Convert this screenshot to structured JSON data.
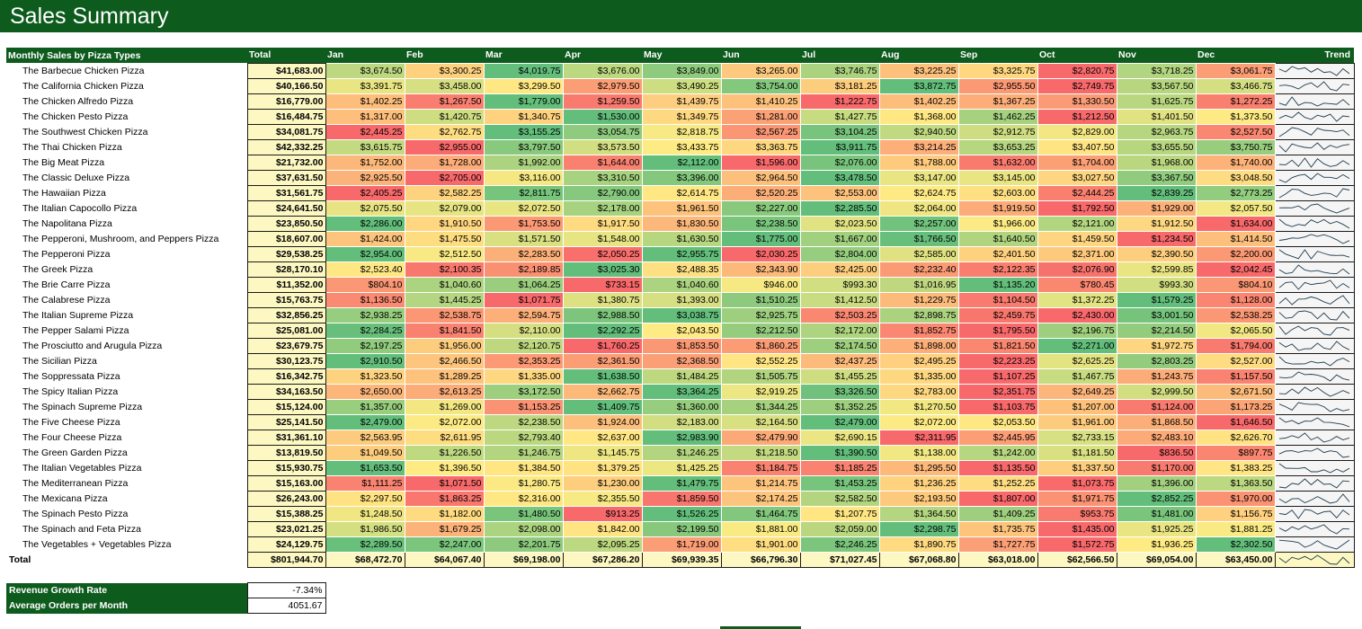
{
  "page": {
    "title": "Sales Summary"
  },
  "table": {
    "headers": [
      "Monthly Sales by Pizza Types",
      "Total",
      "Jan",
      "Feb",
      "Mar",
      "Apr",
      "May",
      "Jun",
      "Jul",
      "Aug",
      "Sep",
      "Oct",
      "Nov",
      "Dec",
      "Trend"
    ],
    "rows": [
      {
        "name": "The Barbecue Chicken Pizza",
        "total": "$41,683.00",
        "months": [
          "$3,674.50",
          "$3,300.25",
          "$4,019.75",
          "$3,676.00",
          "$3,849.00",
          "$3,265.00",
          "$3,746.75",
          "$3,225.25",
          "$3,325.75",
          "$2,820.75",
          "$3,718.25",
          "$3,061.75"
        ]
      },
      {
        "name": "The California Chicken Pizza",
        "total": "$40,166.50",
        "months": [
          "$3,391.75",
          "$3,458.00",
          "$3,299.50",
          "$2,979.50",
          "$3,490.25",
          "$3,754.00",
          "$3,181.25",
          "$3,872.75",
          "$2,955.50",
          "$2,749.75",
          "$3,567.50",
          "$3,466.75"
        ]
      },
      {
        "name": "The Chicken Alfredo Pizza",
        "total": "$16,779.00",
        "months": [
          "$1,402.25",
          "$1,267.50",
          "$1,779.00",
          "$1,259.50",
          "$1,439.75",
          "$1,410.25",
          "$1,222.75",
          "$1,402.25",
          "$1,367.25",
          "$1,330.50",
          "$1,625.75",
          "$1,272.25"
        ]
      },
      {
        "name": "The Chicken Pesto Pizza",
        "total": "$16,484.75",
        "months": [
          "$1,317.00",
          "$1,420.75",
          "$1,340.75",
          "$1,530.00",
          "$1,349.75",
          "$1,281.00",
          "$1,427.75",
          "$1,368.00",
          "$1,462.25",
          "$1,212.50",
          "$1,401.50",
          "$1,373.50"
        ]
      },
      {
        "name": "The Southwest Chicken Pizza",
        "total": "$34,081.75",
        "months": [
          "$2,445.25",
          "$2,762.75",
          "$3,155.25",
          "$3,054.75",
          "$2,818.75",
          "$2,567.25",
          "$3,104.25",
          "$2,940.50",
          "$2,912.75",
          "$2,829.00",
          "$2,963.75",
          "$2,527.50"
        ]
      },
      {
        "name": "The Thai Chicken Pizza",
        "total": "$42,332.25",
        "months": [
          "$3,615.75",
          "$2,955.00",
          "$3,797.50",
          "$3,573.50",
          "$3,433.75",
          "$3,363.75",
          "$3,911.75",
          "$3,214.25",
          "$3,653.25",
          "$3,407.50",
          "$3,655.50",
          "$3,750.75"
        ]
      },
      {
        "name": "The Big Meat Pizza",
        "total": "$21,732.00",
        "months": [
          "$1,752.00",
          "$1,728.00",
          "$1,992.00",
          "$1,644.00",
          "$2,112.00",
          "$1,596.00",
          "$2,076.00",
          "$1,788.00",
          "$1,632.00",
          "$1,704.00",
          "$1,968.00",
          "$1,740.00"
        ]
      },
      {
        "name": "The Classic Deluxe Pizza",
        "total": "$37,631.50",
        "months": [
          "$2,925.50",
          "$2,705.00",
          "$3,116.00",
          "$3,310.50",
          "$3,396.00",
          "$2,964.50",
          "$3,478.50",
          "$3,147.00",
          "$3,145.00",
          "$3,027.50",
          "$3,367.50",
          "$3,048.50"
        ]
      },
      {
        "name": "The Hawaiian Pizza",
        "total": "$31,561.75",
        "months": [
          "$2,405.25",
          "$2,582.25",
          "$2,811.75",
          "$2,790.00",
          "$2,614.75",
          "$2,520.25",
          "$2,553.00",
          "$2,624.75",
          "$2,603.00",
          "$2,444.25",
          "$2,839.25",
          "$2,773.25"
        ]
      },
      {
        "name": "The Italian Capocollo Pizza",
        "total": "$24,641.50",
        "months": [
          "$2,075.50",
          "$2,079.00",
          "$2,072.50",
          "$2,178.00",
          "$1,961.50",
          "$2,227.00",
          "$2,285.50",
          "$2,064.00",
          "$1,919.50",
          "$1,792.50",
          "$1,929.00",
          "$2,057.50"
        ]
      },
      {
        "name": "The Napolitana Pizza",
        "total": "$23,850.50",
        "months": [
          "$2,286.00",
          "$1,910.50",
          "$1,753.50",
          "$1,917.50",
          "$1,830.50",
          "$2,238.50",
          "$2,023.50",
          "$2,257.00",
          "$1,966.00",
          "$2,121.00",
          "$1,912.50",
          "$1,634.00"
        ]
      },
      {
        "name": "The Pepperoni, Mushroom, and Peppers Pizza",
        "total": "$18,607.00",
        "months": [
          "$1,424.00",
          "$1,475.50",
          "$1,571.50",
          "$1,548.00",
          "$1,630.50",
          "$1,775.00",
          "$1,667.00",
          "$1,766.50",
          "$1,640.50",
          "$1,459.50",
          "$1,234.50",
          "$1,414.50"
        ]
      },
      {
        "name": "The Pepperoni Pizza",
        "total": "$29,538.25",
        "months": [
          "$2,954.00",
          "$2,512.50",
          "$2,283.50",
          "$2,050.25",
          "$2,955.75",
          "$2,030.25",
          "$2,804.00",
          "$2,585.00",
          "$2,401.50",
          "$2,371.00",
          "$2,390.50",
          "$2,200.00"
        ]
      },
      {
        "name": "The Greek Pizza",
        "total": "$28,170.10",
        "months": [
          "$2,523.40",
          "$2,100.35",
          "$2,189.85",
          "$3,025.30",
          "$2,488.35",
          "$2,343.90",
          "$2,425.00",
          "$2,232.40",
          "$2,122.35",
          "$2,076.90",
          "$2,599.85",
          "$2,042.45"
        ]
      },
      {
        "name": "The Brie Carre Pizza",
        "total": "$11,352.00",
        "months": [
          "$804.10",
          "$1,040.60",
          "$1,064.25",
          "$733.15",
          "$1,040.60",
          "$946.00",
          "$993.30",
          "$1,016.95",
          "$1,135.20",
          "$780.45",
          "$993.30",
          "$804.10"
        ]
      },
      {
        "name": "The Calabrese Pizza",
        "total": "$15,763.75",
        "months": [
          "$1,136.50",
          "$1,445.25",
          "$1,071.75",
          "$1,380.75",
          "$1,393.00",
          "$1,510.25",
          "$1,412.50",
          "$1,229.75",
          "$1,104.50",
          "$1,372.25",
          "$1,579.25",
          "$1,128.00"
        ]
      },
      {
        "name": "The Italian Supreme Pizza",
        "total": "$32,856.25",
        "months": [
          "$2,938.25",
          "$2,538.75",
          "$2,594.75",
          "$2,988.50",
          "$3,038.75",
          "$2,925.75",
          "$2,503.25",
          "$2,898.75",
          "$2,459.75",
          "$2,430.00",
          "$3,001.50",
          "$2,538.25"
        ]
      },
      {
        "name": "The Pepper Salami Pizza",
        "total": "$25,081.00",
        "months": [
          "$2,284.25",
          "$1,841.50",
          "$2,110.00",
          "$2,292.25",
          "$2,043.50",
          "$2,212.50",
          "$2,172.00",
          "$1,852.75",
          "$1,795.50",
          "$2,196.75",
          "$2,214.50",
          "$2,065.50"
        ]
      },
      {
        "name": "The Prosciutto and Arugula Pizza",
        "total": "$23,679.75",
        "months": [
          "$2,197.25",
          "$1,956.00",
          "$2,120.75",
          "$1,760.25",
          "$1,853.50",
          "$1,860.25",
          "$2,174.50",
          "$1,898.00",
          "$1,821.50",
          "$2,271.00",
          "$1,972.75",
          "$1,794.00"
        ]
      },
      {
        "name": "The Sicilian Pizza",
        "total": "$30,123.75",
        "months": [
          "$2,910.50",
          "$2,466.50",
          "$2,353.25",
          "$2,361.50",
          "$2,368.50",
          "$2,552.25",
          "$2,437.25",
          "$2,495.25",
          "$2,223.25",
          "$2,625.25",
          "$2,803.25",
          "$2,527.00"
        ]
      },
      {
        "name": "The Soppressata Pizza",
        "total": "$16,342.75",
        "months": [
          "$1,323.50",
          "$1,289.25",
          "$1,335.00",
          "$1,638.50",
          "$1,484.25",
          "$1,505.75",
          "$1,455.25",
          "$1,335.00",
          "$1,107.25",
          "$1,467.75",
          "$1,243.75",
          "$1,157.50"
        ]
      },
      {
        "name": "The Spicy Italian Pizza",
        "total": "$34,163.50",
        "months": [
          "$2,650.00",
          "$2,613.25",
          "$3,172.50",
          "$2,662.75",
          "$3,364.25",
          "$2,919.25",
          "$3,326.50",
          "$2,783.00",
          "$2,351.75",
          "$2,649.25",
          "$2,999.50",
          "$2,671.50"
        ]
      },
      {
        "name": "The Spinach Supreme Pizza",
        "total": "$15,124.00",
        "months": [
          "$1,357.00",
          "$1,269.00",
          "$1,153.25",
          "$1,409.75",
          "$1,360.00",
          "$1,344.25",
          "$1,352.25",
          "$1,270.50",
          "$1,103.75",
          "$1,207.00",
          "$1,124.00",
          "$1,173.25"
        ]
      },
      {
        "name": "The Five Cheese Pizza",
        "total": "$25,141.50",
        "months": [
          "$2,479.00",
          "$2,072.00",
          "$2,238.50",
          "$1,924.00",
          "$2,183.00",
          "$2,164.50",
          "$2,479.00",
          "$2,072.00",
          "$2,053.50",
          "$1,961.00",
          "$1,868.50",
          "$1,646.50"
        ]
      },
      {
        "name": "The Four Cheese Pizza",
        "total": "$31,361.10",
        "months": [
          "$2,563.95",
          "$2,611.95",
          "$2,793.40",
          "$2,637.00",
          "$2,983.90",
          "$2,479.90",
          "$2,690.15",
          "$2,311.95",
          "$2,445.95",
          "$2,733.15",
          "$2,483.10",
          "$2,626.70"
        ]
      },
      {
        "name": "The Green Garden Pizza",
        "total": "$13,819.50",
        "months": [
          "$1,049.50",
          "$1,226.50",
          "$1,246.75",
          "$1,145.75",
          "$1,246.25",
          "$1,218.50",
          "$1,390.50",
          "$1,138.00",
          "$1,242.00",
          "$1,181.50",
          "$836.50",
          "$897.75"
        ]
      },
      {
        "name": "The Italian Vegetables Pizza",
        "total": "$15,930.75",
        "months": [
          "$1,653.50",
          "$1,396.50",
          "$1,384.50",
          "$1,379.25",
          "$1,425.25",
          "$1,184.75",
          "$1,185.25",
          "$1,295.50",
          "$1,135.50",
          "$1,337.50",
          "$1,170.00",
          "$1,383.25"
        ]
      },
      {
        "name": "The Mediterranean Pizza",
        "total": "$15,163.00",
        "months": [
          "$1,111.25",
          "$1,071.50",
          "$1,280.75",
          "$1,230.00",
          "$1,479.75",
          "$1,214.75",
          "$1,453.25",
          "$1,236.25",
          "$1,252.25",
          "$1,073.75",
          "$1,396.00",
          "$1,363.50"
        ]
      },
      {
        "name": "The Mexicana Pizza",
        "total": "$26,243.00",
        "months": [
          "$2,297.50",
          "$1,863.25",
          "$2,316.00",
          "$2,355.50",
          "$1,859.50",
          "$2,174.25",
          "$2,582.50",
          "$2,193.50",
          "$1,807.00",
          "$1,971.75",
          "$2,852.25",
          "$1,970.00"
        ]
      },
      {
        "name": "The Spinach Pesto Pizza",
        "total": "$15,388.25",
        "months": [
          "$1,248.50",
          "$1,182.00",
          "$1,480.50",
          "$913.25",
          "$1,526.25",
          "$1,464.75",
          "$1,207.75",
          "$1,364.50",
          "$1,409.25",
          "$953.75",
          "$1,481.00",
          "$1,156.75"
        ]
      },
      {
        "name": "The Spinach and Feta Pizza",
        "total": "$23,021.25",
        "months": [
          "$1,986.50",
          "$1,679.25",
          "$2,098.00",
          "$1,842.00",
          "$2,199.50",
          "$1,881.00",
          "$2,059.00",
          "$2,298.75",
          "$1,735.75",
          "$1,435.00",
          "$1,925.25",
          "$1,881.25"
        ]
      },
      {
        "name": "The Vegetables + Vegetables Pizza",
        "total": "$24,129.75",
        "months": [
          "$2,289.50",
          "$2,247.00",
          "$2,201.75",
          "$2,095.25",
          "$1,719.00",
          "$1,901.00",
          "$2,246.25",
          "$1,890.75",
          "$1,727.75",
          "$1,572.75",
          "$1,936.25",
          "$2,302.50"
        ]
      }
    ],
    "grand_total": {
      "label": "Total",
      "total": "$801,944.70",
      "months": [
        "$68,472.70",
        "$64,067.40",
        "$69,198.00",
        "$67,286.20",
        "$69,939.35",
        "$66,796.30",
        "$71,027.45",
        "$67,068.80",
        "$63,018.00",
        "$62,566.50",
        "$69,054.00",
        "$63,450.00"
      ]
    }
  },
  "kpis": [
    {
      "label": "Revenue Growth Rate",
      "value": "-7.34%"
    },
    {
      "label": "Average Orders per Month",
      "value": "4051.67"
    }
  ],
  "colors": {
    "header_green": "#0e5b1e",
    "heat_low": "#f8696b",
    "heat_mid": "#ffeb84",
    "heat_high": "#63be7b",
    "total_fill": "#fdf8c2"
  }
}
